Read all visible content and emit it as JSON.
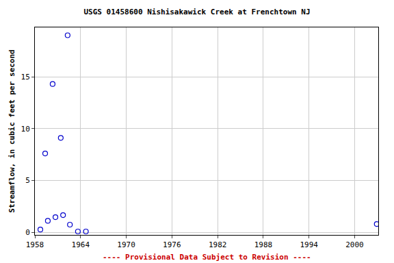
{
  "chart_data": {
    "type": "scatter",
    "title": "USGS 01458600 Nishisakawick Creek at Frenchtown NJ",
    "y_label": "Streamflow, in cubic feet per second",
    "annotation": "---- Provisional Data Subject to Revision ----",
    "x": [
      1958.72,
      1959.35,
      1959.7,
      1960.33,
      1960.7,
      1961.4,
      1961.7,
      1962.3,
      1962.6,
      1963.65,
      1964.7,
      2002.9
    ],
    "values": [
      0.26,
      7.6,
      1.1,
      14.3,
      1.45,
      9.1,
      1.65,
      19.0,
      0.73,
      0.07,
      0.07,
      0.79
    ],
    "color": "#0000cc",
    "marker": "circle-open",
    "xlim": [
      1958,
      2003.1
    ],
    "xticks": [
      1958,
      1964,
      1970,
      1976,
      1982,
      1988,
      1994,
      2000
    ],
    "ylim": [
      -0.26,
      19.76
    ],
    "yticks": [
      0,
      5,
      10,
      15
    ],
    "grid": true
  }
}
